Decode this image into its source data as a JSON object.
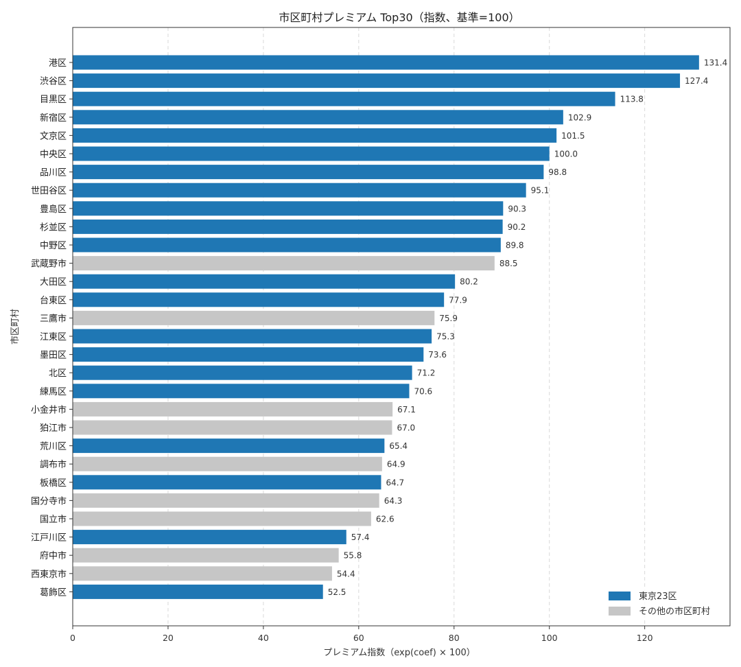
{
  "chart_data": {
    "type": "bar",
    "orientation": "horizontal",
    "title": "市区町村プレミアム Top30（指数、基準=100）",
    "xlabel": "プレミアム指数（exp(coef) × 100）",
    "ylabel": "市区町村",
    "xlim": [
      0,
      137.9
    ],
    "xticks": [
      "0",
      "20",
      "40",
      "60",
      "80",
      "100",
      "120"
    ],
    "xtick_values": [
      0,
      20,
      40,
      60,
      80,
      100,
      120
    ],
    "grid": "vertical-dashed",
    "legend_position": "bottom-right",
    "colors": {
      "tokyo23": "#1f77b4",
      "other": "#c6c6c6"
    },
    "legend": [
      {
        "key": "tokyo23",
        "label": "東京23区"
      },
      {
        "key": "other",
        "label": "その他の市区町村"
      }
    ],
    "categories": [
      "港区",
      "渋谷区",
      "目黒区",
      "新宿区",
      "文京区",
      "中央区",
      "品川区",
      "世田谷区",
      "豊島区",
      "杉並区",
      "中野区",
      "武蔵野市",
      "大田区",
      "台東区",
      "三鷹市",
      "江東区",
      "墨田区",
      "北区",
      "練馬区",
      "小金井市",
      "狛江市",
      "荒川区",
      "調布市",
      "板橋区",
      "国分寺市",
      "国立市",
      "江戸川区",
      "府中市",
      "西東京市",
      "葛飾区"
    ],
    "values": [
      131.4,
      127.4,
      113.8,
      102.9,
      101.5,
      100.0,
      98.8,
      95.1,
      90.3,
      90.2,
      89.8,
      88.5,
      80.2,
      77.9,
      75.9,
      75.3,
      73.6,
      71.2,
      70.6,
      67.1,
      67.0,
      65.4,
      64.9,
      64.7,
      64.3,
      62.6,
      57.4,
      55.8,
      54.4,
      52.5
    ],
    "value_labels": [
      "131.4",
      "127.4",
      "113.8",
      "102.9",
      "101.5",
      "100.0",
      "98.8",
      "95.1",
      "90.3",
      "90.2",
      "89.8",
      "88.5",
      "80.2",
      "77.9",
      "75.9",
      "75.3",
      "73.6",
      "71.2",
      "70.6",
      "67.1",
      "67.0",
      "65.4",
      "64.9",
      "64.7",
      "64.3",
      "62.6",
      "57.4",
      "55.8",
      "54.4",
      "52.5"
    ],
    "groups": [
      "tokyo23",
      "tokyo23",
      "tokyo23",
      "tokyo23",
      "tokyo23",
      "tokyo23",
      "tokyo23",
      "tokyo23",
      "tokyo23",
      "tokyo23",
      "tokyo23",
      "other",
      "tokyo23",
      "tokyo23",
      "other",
      "tokyo23",
      "tokyo23",
      "tokyo23",
      "tokyo23",
      "other",
      "other",
      "tokyo23",
      "other",
      "tokyo23",
      "other",
      "other",
      "tokyo23",
      "other",
      "other",
      "tokyo23"
    ]
  }
}
